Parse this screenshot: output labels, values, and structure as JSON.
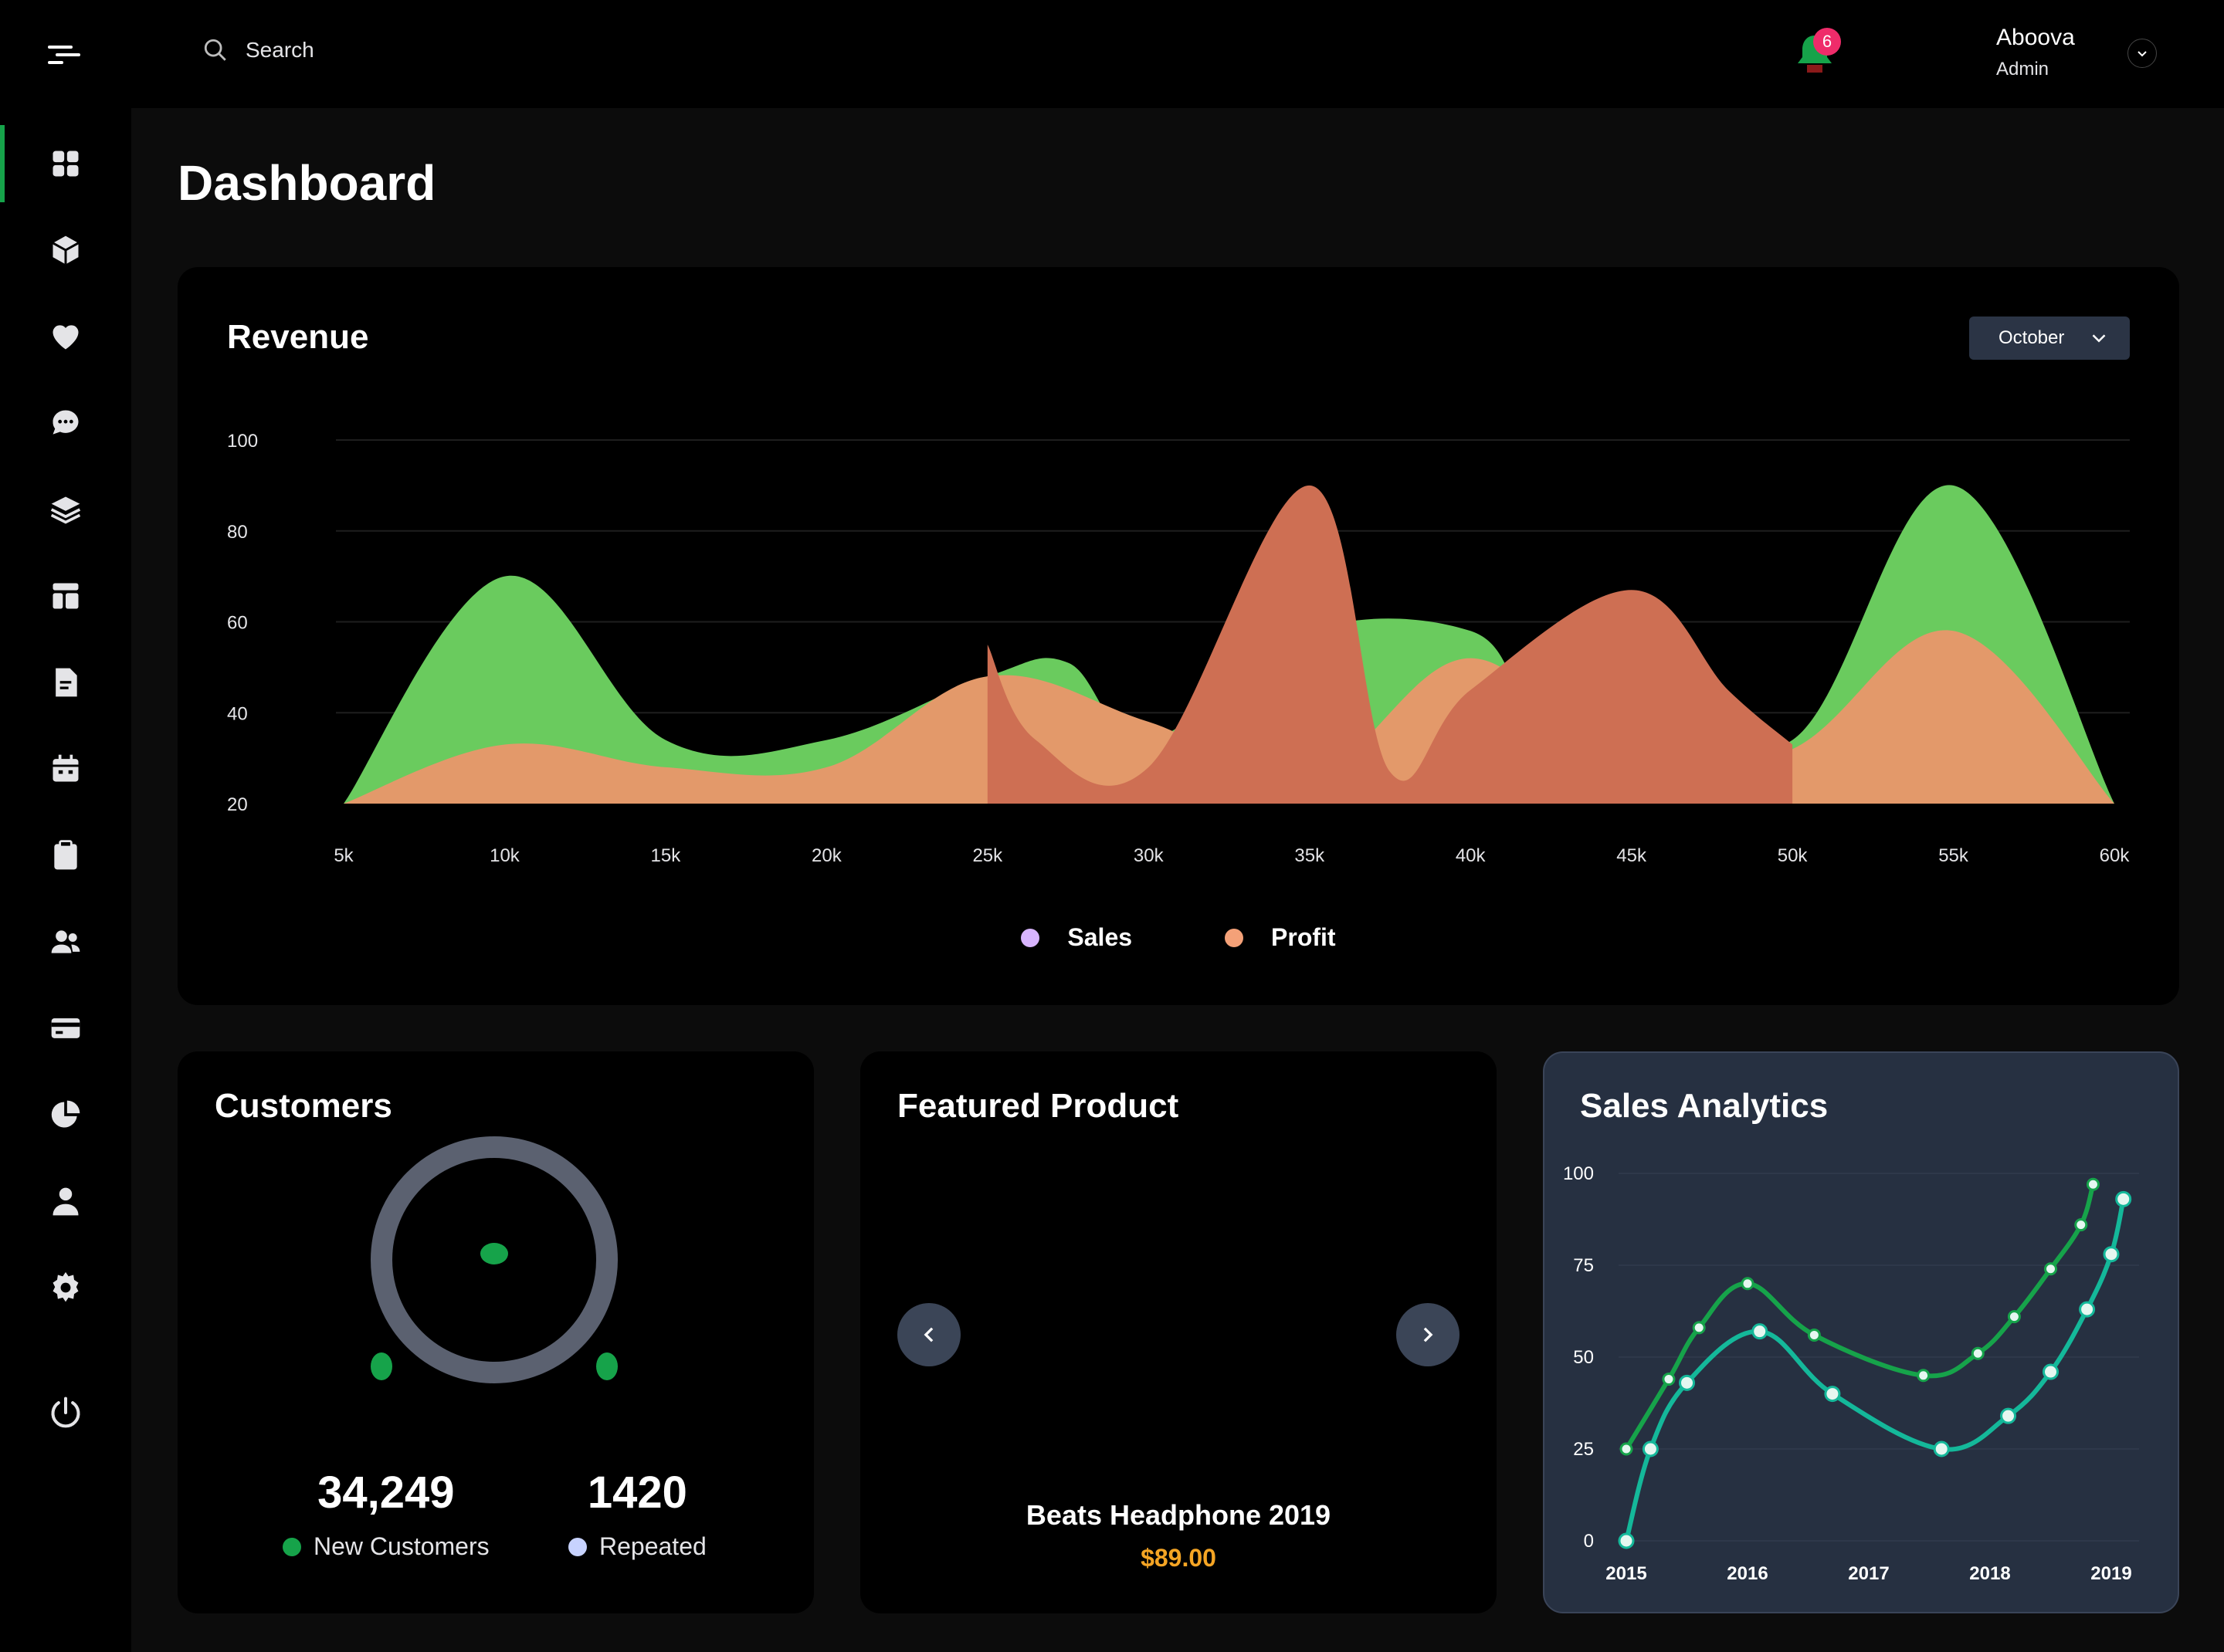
{
  "app": {
    "title": "Dashboard"
  },
  "sidebar": {
    "items": [
      {
        "icon": "grid-icon",
        "active": true
      },
      {
        "icon": "box-icon"
      },
      {
        "icon": "heart-icon"
      },
      {
        "icon": "chat-icon"
      },
      {
        "icon": "layers-icon"
      },
      {
        "icon": "layout-icon"
      },
      {
        "icon": "document-icon"
      },
      {
        "icon": "calendar-icon"
      },
      {
        "icon": "clipboard-icon"
      },
      {
        "icon": "users-icon"
      },
      {
        "icon": "credit-card-icon"
      },
      {
        "icon": "pie-chart-icon"
      },
      {
        "icon": "user-icon"
      },
      {
        "icon": "gear-icon"
      },
      {
        "icon": "power-icon"
      }
    ]
  },
  "header": {
    "search_placeholder": "Search",
    "notification_count": "6",
    "user_name": "Aboova",
    "user_role": "Admin"
  },
  "revenue": {
    "title": "Revenue",
    "month": "October",
    "legend": [
      {
        "name": "Sales",
        "color": "#d8b4fe"
      },
      {
        "name": "Profit",
        "color": "#f4a178"
      }
    ]
  },
  "customers": {
    "title": "Customers",
    "new_value": "34,249",
    "new_label": "New Customers",
    "new_color": "#16a34a",
    "repeated_value": "1420",
    "repeated_label": "Repeated",
    "repeated_color": "#c7d2fe"
  },
  "featured": {
    "title": "Featured Product",
    "name": "Beats Headphone 2019",
    "price": "$89.00"
  },
  "analytics": {
    "title": "Sales Analytics"
  },
  "chart_data": [
    {
      "type": "area",
      "x": [
        5,
        10,
        15,
        20,
        25,
        30,
        35,
        40,
        45,
        50,
        55,
        60
      ],
      "xticklabels": [
        "5k",
        "10k",
        "15k",
        "20k",
        "25k",
        "30k",
        "35k",
        "40k",
        "45k",
        "50k",
        "55k",
        "60k"
      ],
      "yticks": [
        20,
        40,
        60,
        80,
        100
      ],
      "ylim": [
        20,
        100
      ],
      "grid": true,
      "series": [
        {
          "color": "#6acb5e",
          "points": [
            [
              5,
              20
            ],
            [
              10,
              70
            ],
            [
              15,
              34
            ],
            [
              20,
              34
            ],
            [
              25,
              48
            ],
            [
              27.5,
              51
            ],
            [
              30,
              34
            ],
            [
              35,
              58
            ],
            [
              40,
              58
            ],
            [
              42,
              42
            ],
            [
              45,
              43
            ],
            [
              50,
              34
            ],
            [
              55,
              90
            ],
            [
              60,
              20
            ]
          ]
        },
        {
          "color": "#e3996a",
          "points": [
            [
              5,
              20
            ],
            [
              10,
              33
            ],
            [
              15,
              28
            ],
            [
              20,
              28
            ],
            [
              25,
              48
            ],
            [
              30,
              38
            ],
            [
              35,
              26
            ],
            [
              40,
              52
            ],
            [
              45,
              26
            ],
            [
              50,
              32
            ],
            [
              55,
              58
            ],
            [
              60,
              20
            ]
          ]
        },
        {
          "color": "#ce6f53",
          "points": [
            [
              25,
              55
            ],
            [
              26.5,
              34
            ],
            [
              30,
              28
            ],
            [
              35,
              90
            ],
            [
              37.5,
              27
            ],
            [
              40,
              45
            ],
            [
              45,
              67
            ],
            [
              48,
              45
            ],
            [
              50,
              33
            ]
          ]
        }
      ]
    },
    {
      "type": "line",
      "categories": [
        "2015",
        "2016",
        "2017",
        "2018",
        "2019"
      ],
      "yticks": [
        0,
        25,
        50,
        75,
        100
      ],
      "ylim": [
        0,
        100
      ],
      "series": [
        {
          "color": "#16a34a",
          "points": [
            [
              0,
              25
            ],
            [
              0.35,
              44
            ],
            [
              0.6,
              58
            ],
            [
              1.0,
              70
            ],
            [
              1.55,
              56
            ],
            [
              2.45,
              45
            ],
            [
              2.9,
              51
            ],
            [
              3.2,
              61
            ],
            [
              3.5,
              74
            ],
            [
              3.75,
              86
            ],
            [
              3.85,
              97
            ]
          ]
        },
        {
          "color": "#14b89a",
          "points": [
            [
              0,
              0
            ],
            [
              0.2,
              25
            ],
            [
              0.5,
              43
            ],
            [
              1.1,
              57
            ],
            [
              1.7,
              40
            ],
            [
              2.6,
              25
            ],
            [
              3.15,
              34
            ],
            [
              3.5,
              46
            ],
            [
              3.8,
              63
            ],
            [
              4.0,
              78
            ],
            [
              4.1,
              93
            ]
          ]
        }
      ]
    }
  ]
}
